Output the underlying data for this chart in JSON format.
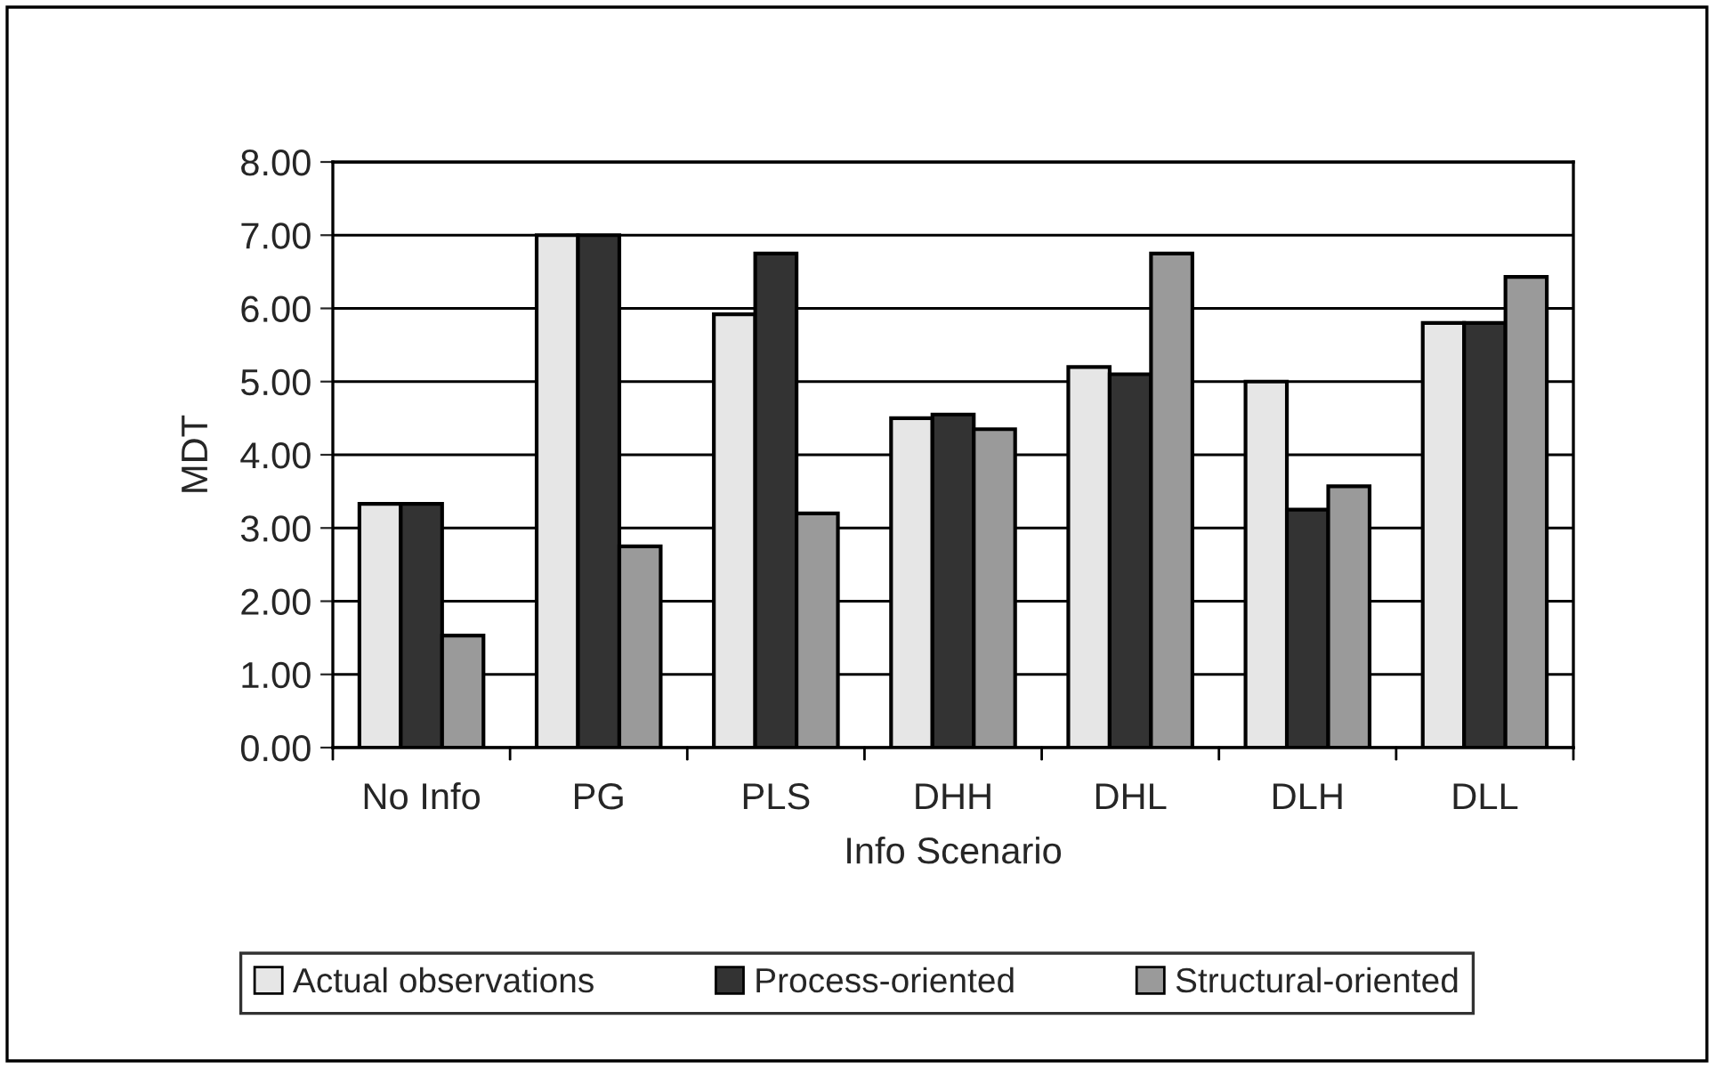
{
  "chart_data": {
    "type": "bar",
    "xlabel": "Info Scenario",
    "ylabel": "MDT",
    "categories": [
      "No Info",
      "PG",
      "PLS",
      "DHH",
      "DHL",
      "DLH",
      "DLL"
    ],
    "series": [
      {
        "name": "Actual observations",
        "color": "#e6e6e6",
        "values": [
          3.33,
          7.0,
          5.92,
          4.5,
          5.2,
          5.0,
          5.8
        ]
      },
      {
        "name": "Process-oriented",
        "color": "#333333",
        "values": [
          3.33,
          7.0,
          6.75,
          4.55,
          5.1,
          3.25,
          5.8
        ]
      },
      {
        "name": "Structural-oriented",
        "color": "#9a9a9a",
        "values": [
          1.53,
          2.75,
          3.2,
          4.35,
          6.75,
          3.57,
          6.43
        ]
      }
    ],
    "ylim": [
      0,
      8
    ],
    "yticks": [
      {
        "value": 0,
        "label": "0.00"
      },
      {
        "value": 1,
        "label": "1.00"
      },
      {
        "value": 2,
        "label": "2.00"
      },
      {
        "value": 3,
        "label": "3.00"
      },
      {
        "value": 4,
        "label": "4.00"
      },
      {
        "value": 5,
        "label": "5.00"
      },
      {
        "value": 6,
        "label": "6.00"
      },
      {
        "value": 7,
        "label": "7.00"
      },
      {
        "value": 8,
        "label": "8.00"
      }
    ],
    "grid": "y",
    "legend": "bottom"
  }
}
